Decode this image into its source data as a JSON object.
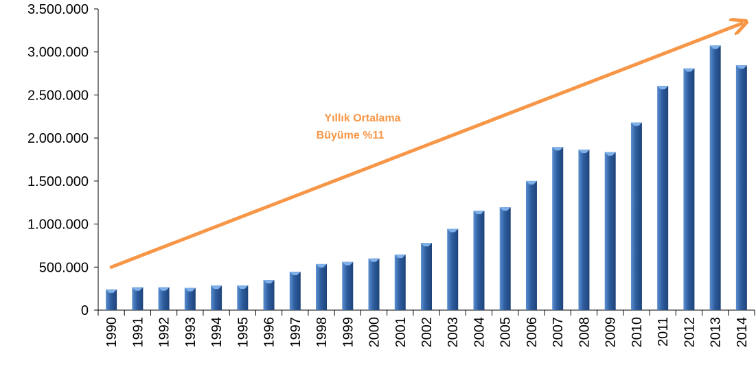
{
  "chart_data": {
    "type": "bar",
    "title": "",
    "xlabel": "",
    "ylabel": "",
    "categories": [
      "1990",
      "1991",
      "1992",
      "1993",
      "1994",
      "1995",
      "1996",
      "1997",
      "1998",
      "1999",
      "2000",
      "2001",
      "2002",
      "2003",
      "2004",
      "2005",
      "2006",
      "2007",
      "2008",
      "2009",
      "2010",
      "2011",
      "2012",
      "2013",
      "2014"
    ],
    "values": [
      240000,
      265000,
      265000,
      258000,
      285000,
      287000,
      350000,
      445000,
      535000,
      560000,
      600000,
      645000,
      780000,
      945000,
      1155000,
      1195000,
      1500000,
      1895000,
      1865000,
      1835000,
      2180000,
      2605000,
      2810000,
      3075000,
      2845000
    ],
    "ylim": [
      0,
      3500000
    ],
    "yticks": [
      0,
      500000,
      1000000,
      1500000,
      2000000,
      2500000,
      3000000,
      3500000
    ],
    "ytick_labels": [
      "0",
      "500.000",
      "1.000.000",
      "1.500.000",
      "2.000.000",
      "2.500.000",
      "3.000.000",
      "3.500.000"
    ],
    "grid": false,
    "bar_color": "#2E5D9E",
    "bar_highlight_color": "#7FB0E8",
    "annotation": {
      "lines": [
        "Yıllık Ortalama",
        "Büyüme %11"
      ],
      "color": "#F79646",
      "arrow_from": [
        "1990",
        500000
      ],
      "arrow_to": [
        "2014",
        3330000
      ]
    }
  }
}
